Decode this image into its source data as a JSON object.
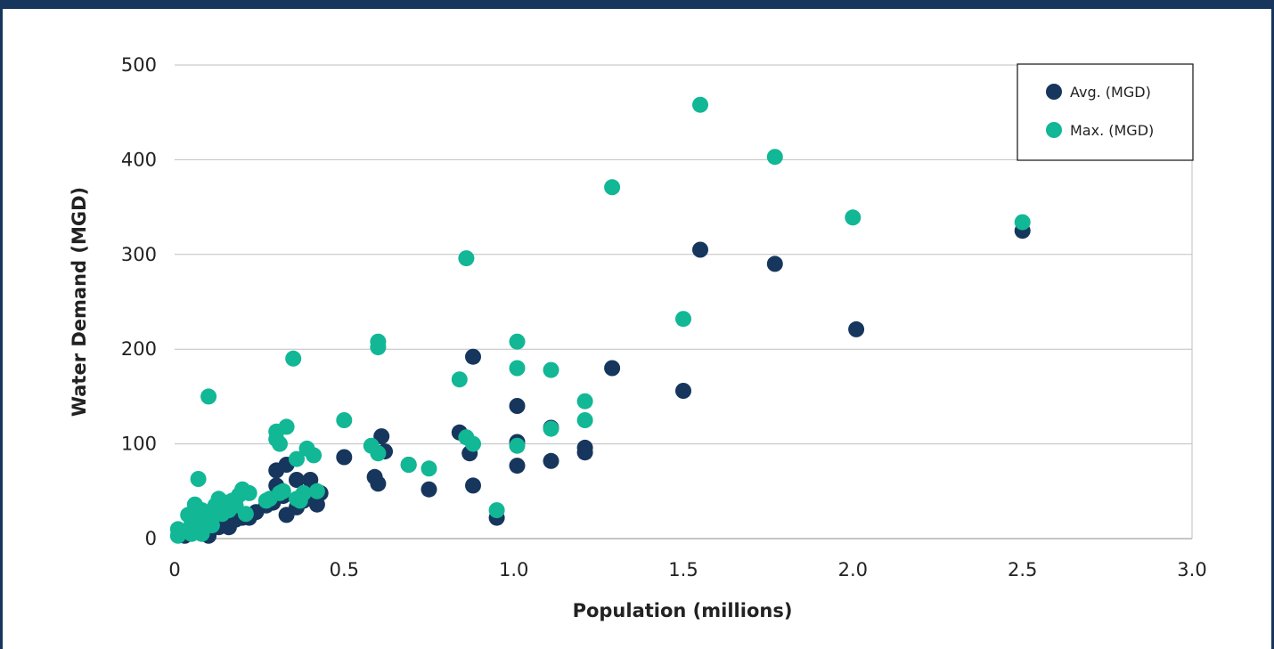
{
  "colors": {
    "frame": "#17365d",
    "avg": "#17365d",
    "max": "#12b795",
    "grid": "#bfbfbf"
  },
  "chart_data": {
    "type": "scatter",
    "xlabel": "Population (millions)",
    "ylabel": "Water Demand (MGD)",
    "xlim": [
      0,
      3.0
    ],
    "ylim": [
      0,
      500
    ],
    "x_ticks": [
      "0",
      "0.5",
      "1.0",
      "1.5",
      "2.0",
      "2.5",
      "3.0"
    ],
    "y_ticks": [
      "0",
      "100",
      "200",
      "300",
      "400",
      "500"
    ],
    "grid": "horizontal",
    "legend_position": "top-right",
    "series": [
      {
        "name": "Avg. (MGD)",
        "color": "#17365d",
        "points": [
          [
            0.03,
            3
          ],
          [
            0.05,
            12
          ],
          [
            0.07,
            8
          ],
          [
            0.09,
            15
          ],
          [
            0.1,
            3
          ],
          [
            0.11,
            18
          ],
          [
            0.12,
            22
          ],
          [
            0.13,
            12
          ],
          [
            0.15,
            25
          ],
          [
            0.16,
            12
          ],
          [
            0.18,
            20
          ],
          [
            0.19,
            24
          ],
          [
            0.2,
            22
          ],
          [
            0.22,
            22
          ],
          [
            0.24,
            28
          ],
          [
            0.27,
            35
          ],
          [
            0.29,
            38
          ],
          [
            0.3,
            56
          ],
          [
            0.3,
            72
          ],
          [
            0.32,
            45
          ],
          [
            0.33,
            25
          ],
          [
            0.33,
            78
          ],
          [
            0.36,
            33
          ],
          [
            0.36,
            62
          ],
          [
            0.38,
            40
          ],
          [
            0.4,
            62
          ],
          [
            0.41,
            48
          ],
          [
            0.42,
            36
          ],
          [
            0.43,
            48
          ],
          [
            0.5,
            86
          ],
          [
            0.59,
            65
          ],
          [
            0.6,
            58
          ],
          [
            0.61,
            108
          ],
          [
            0.62,
            92
          ],
          [
            0.69,
            78
          ],
          [
            0.75,
            52
          ],
          [
            0.84,
            112
          ],
          [
            0.87,
            90
          ],
          [
            0.88,
            192
          ],
          [
            0.88,
            56
          ],
          [
            0.95,
            22
          ],
          [
            1.01,
            140
          ],
          [
            1.01,
            102
          ],
          [
            1.01,
            77
          ],
          [
            1.11,
            82
          ],
          [
            1.11,
            117
          ],
          [
            1.21,
            96
          ],
          [
            1.21,
            91
          ],
          [
            1.29,
            180
          ],
          [
            1.5,
            156
          ],
          [
            1.55,
            305
          ],
          [
            1.77,
            290
          ],
          [
            2.01,
            221
          ],
          [
            2.5,
            325
          ]
        ]
      },
      {
        "name": "Max. (MGD)",
        "color": "#12b795",
        "points": [
          [
            0.01,
            10
          ],
          [
            0.01,
            3
          ],
          [
            0.03,
            8
          ],
          [
            0.04,
            25
          ],
          [
            0.05,
            15
          ],
          [
            0.05,
            5
          ],
          [
            0.06,
            36
          ],
          [
            0.06,
            20
          ],
          [
            0.07,
            63
          ],
          [
            0.07,
            10
          ],
          [
            0.08,
            30
          ],
          [
            0.08,
            5
          ],
          [
            0.09,
            18
          ],
          [
            0.1,
            150
          ],
          [
            0.1,
            28
          ],
          [
            0.11,
            22
          ],
          [
            0.11,
            14
          ],
          [
            0.12,
            35
          ],
          [
            0.13,
            42
          ],
          [
            0.14,
            26
          ],
          [
            0.15,
            38
          ],
          [
            0.16,
            30
          ],
          [
            0.17,
            40
          ],
          [
            0.18,
            35
          ],
          [
            0.19,
            46
          ],
          [
            0.2,
            52
          ],
          [
            0.21,
            26
          ],
          [
            0.22,
            48
          ],
          [
            0.27,
            40
          ],
          [
            0.28,
            42
          ],
          [
            0.3,
            105
          ],
          [
            0.3,
            113
          ],
          [
            0.31,
            100
          ],
          [
            0.31,
            48
          ],
          [
            0.32,
            50
          ],
          [
            0.33,
            118
          ],
          [
            0.35,
            190
          ],
          [
            0.36,
            84
          ],
          [
            0.36,
            42
          ],
          [
            0.37,
            40
          ],
          [
            0.38,
            48
          ],
          [
            0.39,
            95
          ],
          [
            0.41,
            88
          ],
          [
            0.42,
            50
          ],
          [
            0.5,
            125
          ],
          [
            0.58,
            98
          ],
          [
            0.6,
            90
          ],
          [
            0.6,
            202
          ],
          [
            0.6,
            208
          ],
          [
            0.69,
            78
          ],
          [
            0.75,
            74
          ],
          [
            0.84,
            168
          ],
          [
            0.86,
            296
          ],
          [
            0.86,
            107
          ],
          [
            0.88,
            100
          ],
          [
            0.95,
            30
          ],
          [
            1.01,
            208
          ],
          [
            1.01,
            180
          ],
          [
            1.01,
            98
          ],
          [
            1.11,
            178
          ],
          [
            1.11,
            116
          ],
          [
            1.21,
            145
          ],
          [
            1.21,
            125
          ],
          [
            1.29,
            371
          ],
          [
            1.5,
            232
          ],
          [
            1.55,
            458
          ],
          [
            1.77,
            403
          ],
          [
            2.0,
            339
          ],
          [
            2.5,
            334
          ]
        ]
      }
    ]
  }
}
